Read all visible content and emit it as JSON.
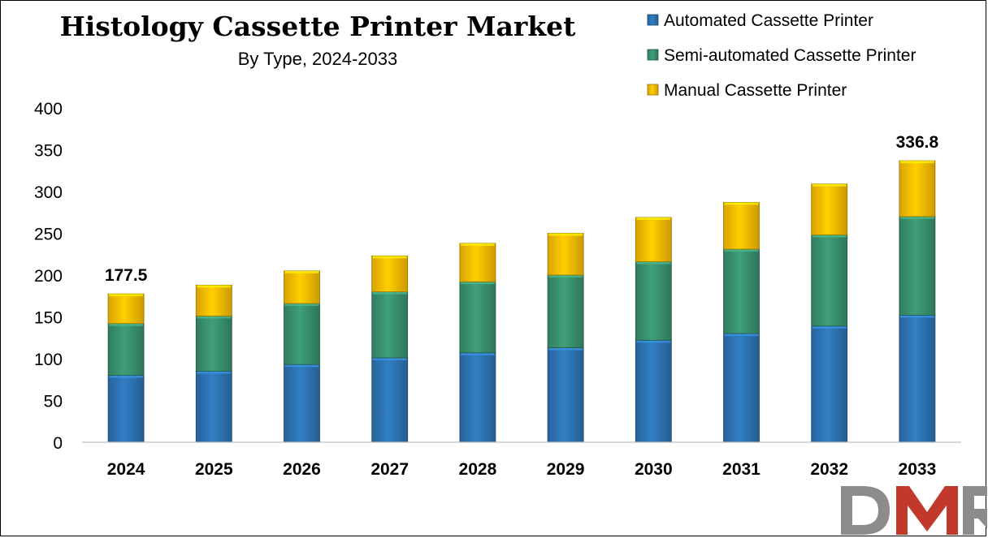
{
  "chart_data": {
    "type": "bar",
    "stacked": true,
    "title": "Histology Cassette Printer Market",
    "subtitle": "By Type, 2024-2033",
    "xlabel": "",
    "ylabel": "",
    "ylim": [
      0,
      400
    ],
    "yticks": [
      0,
      50,
      100,
      150,
      200,
      250,
      300,
      350,
      400
    ],
    "grid": false,
    "legend_position": "top-right",
    "categories": [
      "2024",
      "2025",
      "2026",
      "2027",
      "2028",
      "2029",
      "2030",
      "2031",
      "2032",
      "2033"
    ],
    "series": [
      {
        "name": "Automated Cassette Printer",
        "color": "#2e75b6",
        "values": [
          80,
          85,
          93,
          101,
          107,
          113,
          122,
          130,
          139,
          152
        ]
      },
      {
        "name": "Semi-automated Cassette Printer",
        "color": "#3a9370",
        "values": [
          62,
          66,
          73,
          79,
          85,
          87,
          94,
          101,
          109,
          118
        ]
      },
      {
        "name": "Manual Cassette Printer",
        "color": "#ffc000",
        "values": [
          35.5,
          37,
          39,
          43,
          46,
          50,
          53,
          56,
          61,
          66.8
        ]
      }
    ],
    "total_labels": [
      {
        "category": "2024",
        "text": "177.5",
        "value": 177.5
      },
      {
        "category": "2033",
        "text": "336.8",
        "value": 336.8
      }
    ]
  },
  "logo": {
    "text": "DMR",
    "colors": [
      "#8c8c8c",
      "#c0392b",
      "#8c8c8c"
    ]
  }
}
